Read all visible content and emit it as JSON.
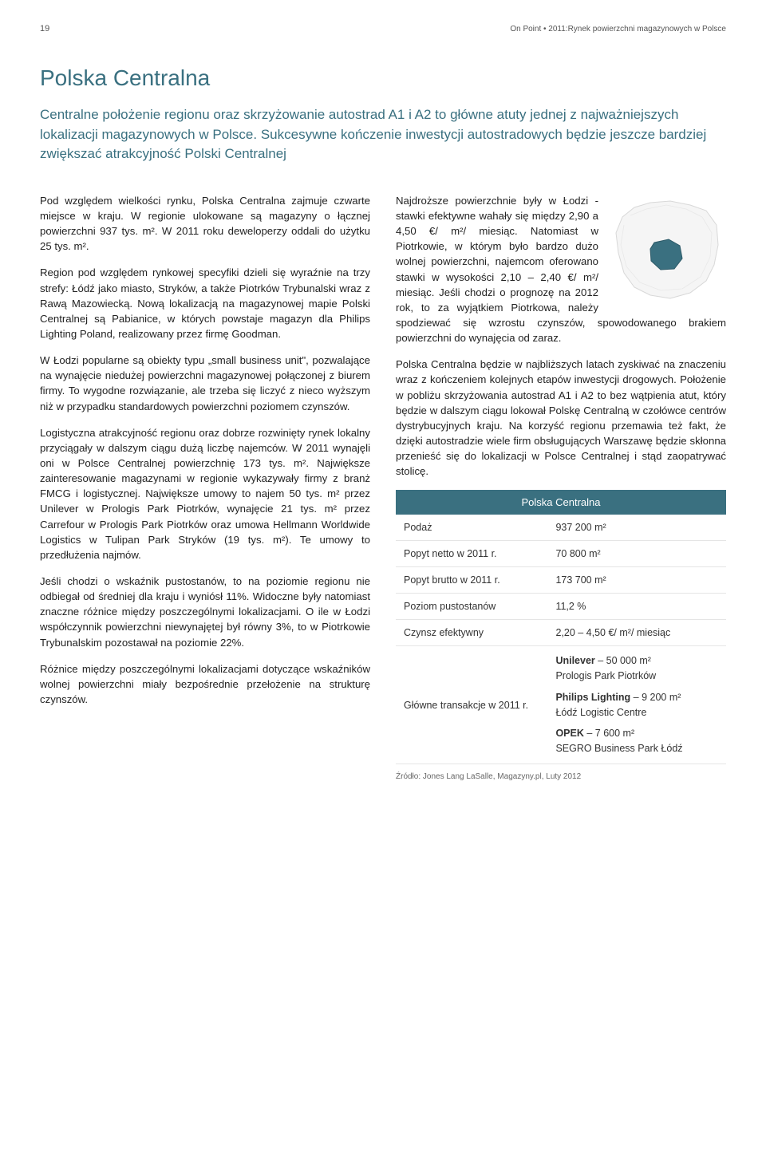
{
  "header": {
    "page_number": "19",
    "doc_title": "On Point • 2011:Rynek powierzchni magazynowych w Polsce"
  },
  "title": "Polska Centralna",
  "subtitle": "Centralne położenie regionu oraz skrzyżowanie autostrad A1 i A2 to główne atuty jednej z najważniejszych lokalizacji magazynowych w Polsce. Sukcesywne kończenie inwestycji autostradowych będzie jeszcze bardziej zwiększać atrakcyjność Polski Centralnej",
  "left": {
    "p1": "Pod względem wielkości rynku, Polska Centralna zajmuje czwarte miejsce w kraju. W regionie ulokowane są magazyny o łącznej powierzchni 937 tys. m². W 2011 roku deweloperzy oddali do użytku 25 tys. m².",
    "p2": "Region pod względem rynkowej specyfiki dzieli się wyraźnie na trzy strefy: Łódź jako miasto, Stryków, a także Piotrków Trybunalski wraz z Rawą Mazowiecką. Nową lokalizacją na magazynowej mapie Polski Centralnej są Pabianice, w których powstaje magazyn dla Philips Lighting Poland, realizowany przez firmę Goodman.",
    "p3": "W Łodzi popularne są obiekty typu „small business unit\", pozwalające na wynajęcie niedużej powierzchni magazynowej połączonej z biurem firmy. To wygodne rozwiązanie, ale trzeba się liczyć z nieco wyższym niż w przypadku standardowych powierzchni poziomem czynszów.",
    "p4": "Logistyczna atrakcyjność regionu oraz dobrze rozwinięty rynek lokalny przyciągały w dalszym ciągu dużą liczbę najemców. W 2011 wynajęli oni w Polsce Centralnej powierzchnię 173 tys. m². Największe zainteresowanie magazynami w regionie wykazywały firmy z branż FMCG i logistycznej. Największe umowy to najem 50 tys. m² przez Unilever w Prologis Park Piotrków, wynajęcie 21 tys. m² przez Carrefour w Prologis Park Piotrków oraz umowa Hellmann Worldwide Logistics w Tulipan Park Stryków (19 tys. m²). Te umowy to przedłużenia najmów.",
    "p5": "Jeśli chodzi o wskaźnik pustostanów, to na poziomie regionu nie odbiegał od średniej dla kraju i wyniósł 11%. Widoczne były natomiast znaczne różnice między poszczególnymi lokalizacjami. O ile w Łodzi współczynnik powierzchni niewynajętej był równy 3%, to w Piotrkowie Trybunalskim pozostawał na poziomie 22%.",
    "p6": "Różnice między poszczególnymi lokalizacjami dotyczące wskaźników wolnej powierzchni miały bezpośrednie przełożenie na strukturę czynszów."
  },
  "right": {
    "p1": "Najdroższe powierzchnie były w Łodzi - stawki efektywne wahały się między 2,90 a 4,50 €/ m²/ miesiąc. Natomiast w Piotrkowie, w którym było bardzo dużo wolnej powierzchni, najemcom oferowano stawki w wysokości 2,10 – 2,40 €/ m²/ miesiąc. Jeśli chodzi o prognozę na 2012 rok, to za wyjątkiem Piotrkowa, należy spodziewać się wzrostu czynszów, spowodowanego brakiem powierzchni do wynajęcia od zaraz.",
    "p2": "Polska Centralna będzie w najbliższych latach zyskiwać na znaczeniu wraz z kończeniem kolejnych etapów inwestycji drogowych. Położenie w pobliżu skrzyżowania autostrad A1 i A2 to bez wątpienia atut, który będzie w dalszym ciągu lokował Polskę Centralną w czołówce centrów dystrybucyjnych kraju. Na korzyść regionu przemawia też fakt, że dzięki autostradzie wiele firm obsługujących Warszawę będzie skłonna przenieść się do lokalizacji w Polsce Centralnej i stąd zaopatrywać stolicę."
  },
  "table": {
    "header": "Polska Centralna",
    "rows": [
      {
        "label": "Podaż",
        "value": "937 200 m²"
      },
      {
        "label": "Popyt netto w 2011 r.",
        "value": "70 800 m²"
      },
      {
        "label": "Popyt brutto w 2011 r.",
        "value": "173 700 m²"
      },
      {
        "label": "Poziom pustostanów",
        "value": "11,2 %"
      },
      {
        "label": "Czynsz efektywny",
        "value": "2,20 – 4,50 €/ m²/ miesiąc"
      }
    ],
    "transactions_label": "Główne transakcje w 2011 r.",
    "transactions": [
      {
        "name": "Unilever",
        "size": " – 50 000 m²",
        "place": "Prologis Park Piotrków"
      },
      {
        "name": "Philips Lighting",
        "size": " – 9 200 m²",
        "place": "Łódź Logistic Centre"
      },
      {
        "name": "OPEK",
        "size": " – 7 600 m²",
        "place": "SEGRO Business Park Łódź"
      }
    ]
  },
  "source": "Źródło: Jones Lang LaSalle, Magazyny.pl, Luty 2012",
  "colors": {
    "accent": "#3a7080",
    "map_outline": "#d8d8d8",
    "map_highlight": "#3a7080"
  }
}
